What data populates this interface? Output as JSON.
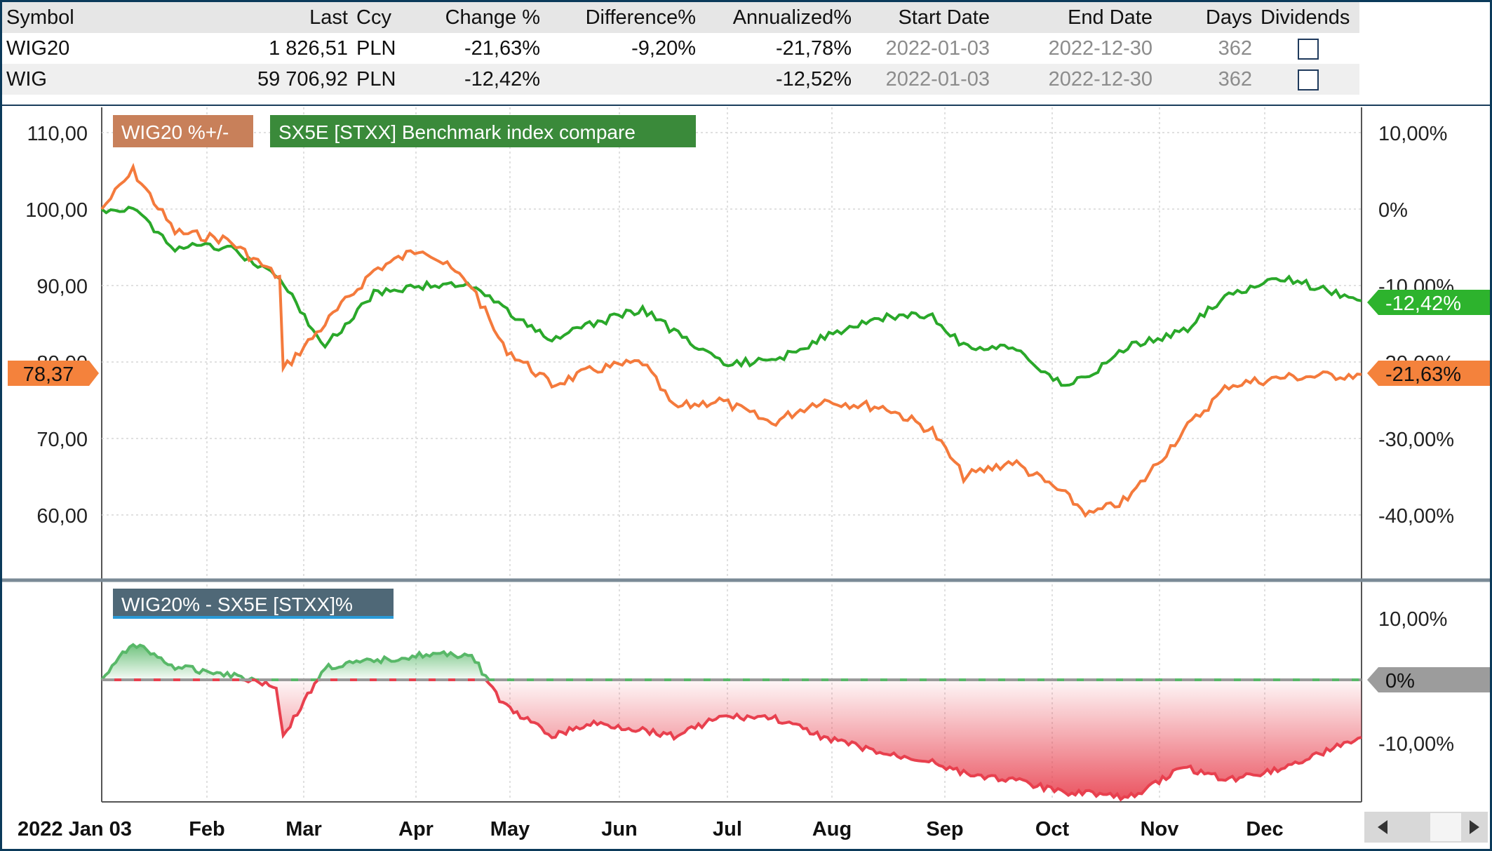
{
  "table": {
    "headers": [
      "Symbol",
      "Last",
      "Ccy",
      "Change %",
      "Difference%",
      "Annualized%",
      "Start Date",
      "End Date",
      "Days",
      "Dividends"
    ],
    "rows": [
      {
        "symbol": "WIG20",
        "last": "1 826,51",
        "ccy": "PLN",
        "change": "-21,63%",
        "difference": "-9,20%",
        "annualized": "-21,78%",
        "start": "2022-01-03",
        "end": "2022-12-30",
        "days": "362",
        "dividends": false
      },
      {
        "symbol": "WIG",
        "last": "59 706,92",
        "ccy": "PLN",
        "change": "-12,42%",
        "difference": "",
        "annualized": "-12,52%",
        "start": "2022-01-03",
        "end": "2022-12-30",
        "days": "362",
        "dividends": false
      }
    ]
  },
  "chart_data": [
    {
      "type": "line",
      "legend": [
        {
          "label": "WIG20 %+/-",
          "color": "#c8805a"
        },
        {
          "label": "SX5E [STXX] Benchmark index compare",
          "color": "#3a8a3a"
        }
      ],
      "left_axis": {
        "ticks": [
          "110,00",
          "100,00",
          "90,00",
          "80,00",
          "70,00",
          "60,00"
        ],
        "ylim": [
          50,
          112
        ]
      },
      "right_axis": {
        "ticks": [
          "10,00%",
          "0%",
          "-10,00%",
          "-20,00%",
          "-30,00%",
          "-40,00%"
        ]
      },
      "series": [
        {
          "key": "wig20",
          "color": "#f47a3c",
          "x": [
            "2022-01-03",
            "2022-01-12",
            "2022-01-24",
            "2022-02-08",
            "2022-02-23",
            "2022-02-24",
            "2022-03-08",
            "2022-03-22",
            "2022-04-05",
            "2022-04-19",
            "2022-04-28",
            "2022-05-12",
            "2022-05-24",
            "2022-06-07",
            "2022-06-16",
            "2022-06-29",
            "2022-07-14",
            "2022-07-28",
            "2022-08-16",
            "2022-08-29",
            "2022-09-07",
            "2022-09-21",
            "2022-10-05",
            "2022-10-13",
            "2022-10-24",
            "2022-11-09",
            "2022-11-22",
            "2022-12-08",
            "2022-12-30"
          ],
          "values": [
            100,
            105,
            97,
            96,
            91,
            79,
            85,
            92,
            95,
            90,
            82,
            77,
            79,
            80,
            74,
            75,
            72,
            75,
            74,
            71,
            65,
            67,
            63,
            60,
            62,
            71,
            77,
            78,
            78.37
          ],
          "end_label": "78,37",
          "right_label": "-21,63%"
        },
        {
          "key": "wig",
          "color": "#2aa82a",
          "x": [
            "2022-01-03",
            "2022-01-12",
            "2022-01-24",
            "2022-02-08",
            "2022-02-23",
            "2022-03-08",
            "2022-03-22",
            "2022-04-05",
            "2022-04-19",
            "2022-04-28",
            "2022-05-12",
            "2022-05-24",
            "2022-06-07",
            "2022-06-16",
            "2022-06-29",
            "2022-07-14",
            "2022-07-28",
            "2022-08-16",
            "2022-08-29",
            "2022-09-07",
            "2022-09-21",
            "2022-10-05",
            "2022-10-13",
            "2022-10-24",
            "2022-11-09",
            "2022-11-22",
            "2022-12-08",
            "2022-12-30"
          ],
          "values": [
            100,
            100,
            95,
            95,
            91,
            82,
            89,
            90,
            90,
            87,
            83,
            85,
            87,
            84,
            80,
            80,
            83,
            86,
            86,
            82,
            82,
            77,
            78,
            82,
            84,
            89,
            91,
            88
          ],
          "right_label": "-12,42%"
        }
      ]
    },
    {
      "type": "area",
      "legend": [
        {
          "label": "WIG20% - SX5E [STXX]%",
          "color": "#4f6877"
        }
      ],
      "right_axis": {
        "ticks": [
          "10,00%",
          "0%",
          "-10,00%"
        ],
        "ylim": [
          -20,
          14
        ]
      },
      "zero_label": "0%",
      "series": [
        {
          "key": "diff",
          "x": [
            "2022-01-03",
            "2022-01-12",
            "2022-01-24",
            "2022-02-08",
            "2022-02-22",
            "2022-02-24",
            "2022-03-08",
            "2022-03-22",
            "2022-04-05",
            "2022-04-19",
            "2022-04-28",
            "2022-05-12",
            "2022-05-24",
            "2022-06-07",
            "2022-06-16",
            "2022-06-29",
            "2022-07-14",
            "2022-07-28",
            "2022-08-16",
            "2022-08-29",
            "2022-09-07",
            "2022-09-21",
            "2022-10-05",
            "2022-10-13",
            "2022-10-24",
            "2022-11-09",
            "2022-11-22",
            "2022-12-08",
            "2022-12-30"
          ],
          "values": [
            0,
            6,
            2,
            1,
            -1,
            -9,
            2,
            3,
            4,
            4,
            -4,
            -9,
            -7,
            -8,
            -9,
            -6,
            -6,
            -9,
            -12,
            -13,
            -15,
            -16,
            -18,
            -18,
            -19,
            -14,
            -16,
            -14,
            -9.2
          ]
        }
      ]
    }
  ],
  "x_axis": {
    "labels": [
      "2022 Jan 03",
      "Feb",
      "Mar",
      "Apr",
      "May",
      "Jun",
      "Jul",
      "Aug",
      "Sep",
      "Oct",
      "Nov",
      "Dec"
    ]
  },
  "colors": {
    "frame": "#0b3a5a",
    "grid": "#d6d6d6",
    "orange": "#f47a3c",
    "green": "#2aa82a",
    "positive_fill": "#58b868",
    "negative_fill": "#e8404e"
  }
}
